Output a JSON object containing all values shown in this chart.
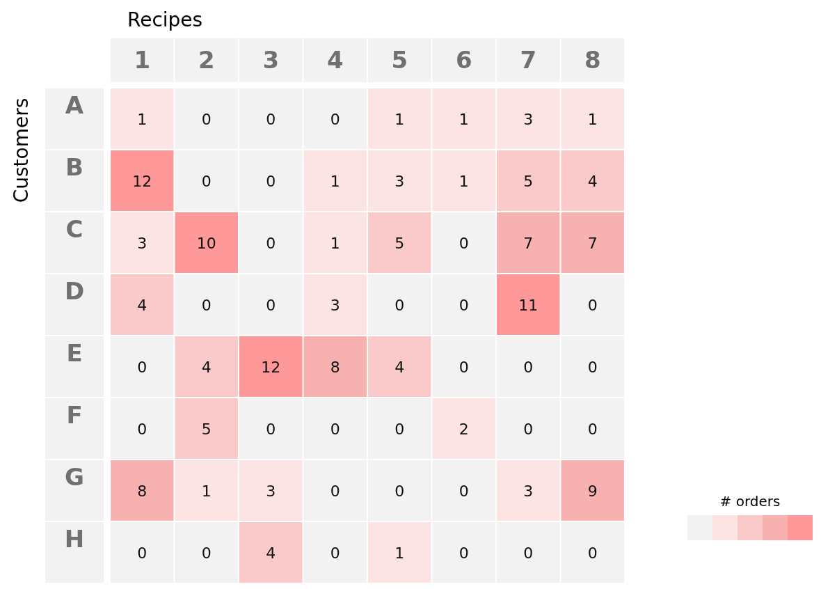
{
  "chart_data": {
    "type": "heatmap",
    "xlabel": "Recipes",
    "ylabel": "Customers",
    "legend_title": "# orders",
    "categories": [
      "1",
      "2",
      "3",
      "4",
      "5",
      "6",
      "7",
      "8"
    ],
    "y_categories": [
      "A",
      "B",
      "C",
      "D",
      "E",
      "F",
      "G",
      "H"
    ],
    "colors": [
      "#f2f2f2",
      "#fce4e4",
      "#fac9c9",
      "#f8b1b1",
      "#ff9999"
    ],
    "cells": [
      [
        1,
        0,
        0,
        0,
        1,
        1,
        3,
        1
      ],
      [
        12,
        0,
        0,
        1,
        3,
        1,
        5,
        4
      ],
      [
        3,
        10,
        0,
        1,
        5,
        0,
        7,
        7
      ],
      [
        4,
        0,
        0,
        3,
        0,
        0,
        11,
        0
      ],
      [
        0,
        4,
        12,
        8,
        4,
        0,
        0,
        0
      ],
      [
        0,
        5,
        0,
        0,
        0,
        2,
        0,
        0
      ],
      [
        8,
        1,
        3,
        0,
        0,
        0,
        3,
        9
      ],
      [
        0,
        0,
        4,
        0,
        1,
        0,
        0,
        0
      ]
    ],
    "data_labels": true
  }
}
